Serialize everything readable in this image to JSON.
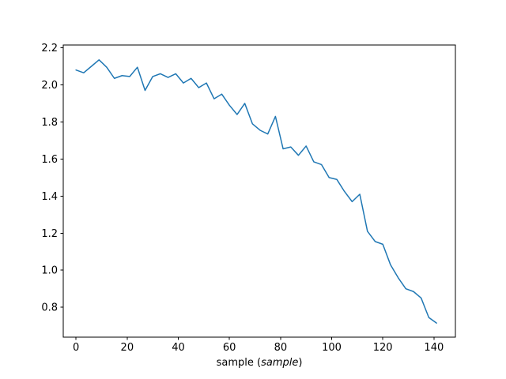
{
  "figure": {
    "background_color": "#ffffff",
    "axis_color": "#000000",
    "xlabel_prefix": "sample (",
    "xlabel_italic": "sample",
    "xlabel_suffix": ")"
  },
  "chart_data": {
    "type": "line",
    "title": "",
    "xlabel": "sample (sample)",
    "ylabel": "",
    "grid": false,
    "legend": null,
    "line_color": "#1f77b4",
    "line_width": 1.5,
    "xlim": [
      -5.0,
      148.4
    ],
    "ylim": [
      0.639,
      2.215
    ],
    "xtick_values": [
      0,
      20,
      40,
      60,
      80,
      100,
      120,
      140
    ],
    "xtick_labels": [
      "0",
      "20",
      "40",
      "60",
      "80",
      "100",
      "120",
      "140"
    ],
    "ytick_values": [
      0.8,
      1.0,
      1.2,
      1.4,
      1.6,
      1.8,
      2.0,
      2.2
    ],
    "ytick_labels": [
      "0.8",
      "1.0",
      "1.2",
      "1.4",
      "1.6",
      "1.8",
      "2.0",
      "2.2"
    ],
    "x": [
      0,
      3,
      6,
      9,
      12,
      15,
      18,
      21,
      24,
      27,
      30,
      33,
      36,
      39,
      42,
      45,
      48,
      51,
      54,
      57,
      60,
      63,
      66,
      69,
      72,
      75,
      78,
      81,
      84,
      87,
      90,
      93,
      96,
      99,
      102,
      105,
      108,
      111,
      114,
      117,
      120,
      123,
      126,
      129,
      132,
      135,
      138,
      141
    ],
    "y": [
      2.08,
      2.065,
      2.1,
      2.135,
      2.095,
      2.035,
      2.05,
      2.045,
      2.095,
      1.97,
      2.045,
      2.06,
      2.04,
      2.06,
      2.01,
      2.035,
      1.985,
      2.01,
      1.925,
      1.95,
      1.89,
      1.84,
      1.9,
      1.79,
      1.755,
      1.735,
      1.83,
      1.655,
      1.665,
      1.62,
      1.67,
      1.585,
      1.57,
      1.5,
      1.49,
      1.425,
      1.37,
      1.41,
      1.21,
      1.155,
      1.14,
      1.03,
      0.96,
      0.9,
      0.885,
      0.85,
      0.745,
      0.715
    ]
  }
}
